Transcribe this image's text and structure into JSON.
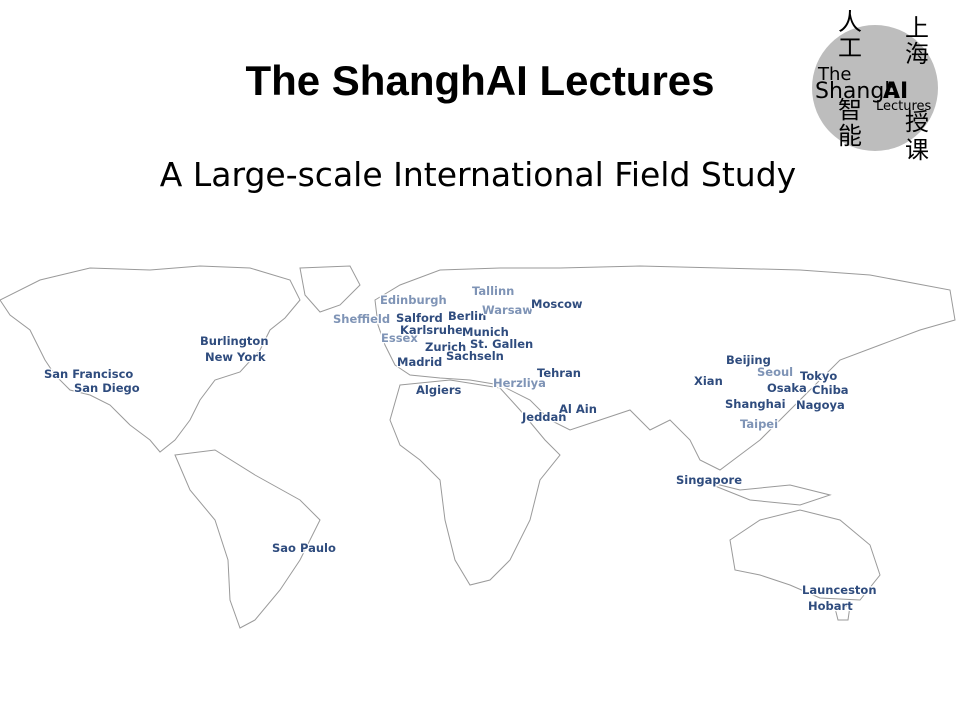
{
  "header": {
    "title": "The ShanghAI Lectures",
    "subtitle": "A Large-scale International Field Study"
  },
  "logo": {
    "chars": [
      "人",
      "工",
      "智",
      "能",
      "上",
      "海",
      "授",
      "课"
    ],
    "the": "The",
    "shangh": "Shangh",
    "ai": "AI",
    "lectures": "Lectures"
  },
  "cities": [
    "San Francisco",
    "San Diego",
    "Burlington",
    "New York",
    "Sao Paulo",
    "Edinburgh",
    "Sheffield",
    "Salford",
    "Berlin",
    "Tallinn",
    "Warsaw",
    "Moscow",
    "Karlsruhe",
    "Essex",
    "Munich",
    "Zurich",
    "St. Gallen",
    "Sachseln",
    "Madrid",
    "Tehran",
    "Herzliya",
    "Algiers",
    "Jeddah",
    "Al Ain",
    "Beijing",
    "Xian",
    "Seoul",
    "Osaka",
    "Tokyo",
    "Chiba",
    "Shanghai",
    "Nagoya",
    "Taipei",
    "Singapore",
    "Launceston",
    "Hobart"
  ]
}
